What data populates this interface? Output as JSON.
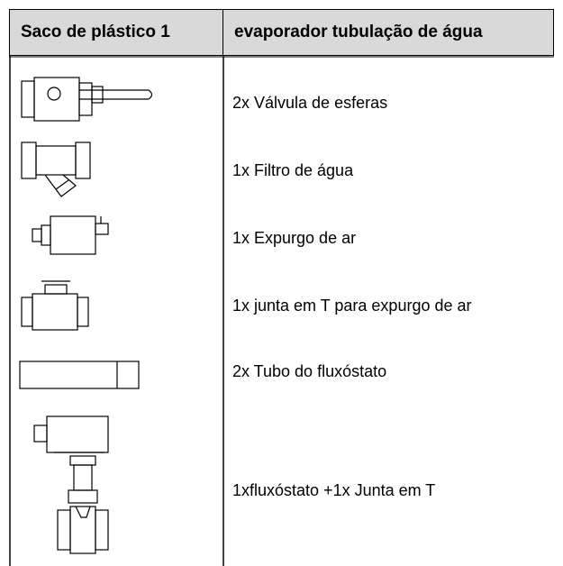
{
  "table": {
    "header": [
      "Saco de plástico 1",
      "evaporador tubulação de água"
    ],
    "rows": [
      "2x Válvula de esferas",
      "1x Filtro de água",
      "1x Expurgo de ar",
      "1x junta em T para expurgo de ar",
      "2x Tubo do fluxóstato",
      "1xfluxóstato +1x Junta em T"
    ]
  }
}
